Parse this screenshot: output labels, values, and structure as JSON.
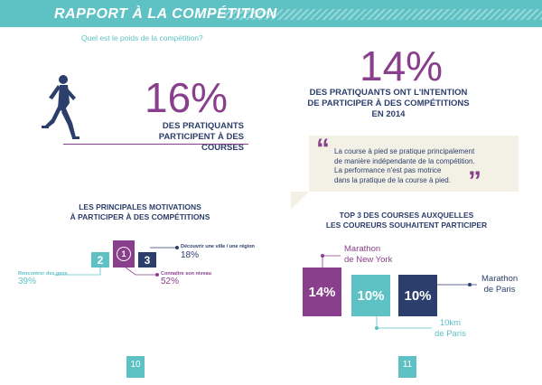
{
  "header": {
    "title": "RAPPORT À LA COMPÉTITION",
    "subtitle": "Quel est le poids de la compétition?"
  },
  "left_page": {
    "big_percent": "16%",
    "stat_lines": [
      "DES PRATIQUANTS",
      "PARTICIPENT À DES",
      "COURSES"
    ],
    "motivations_heading": [
      "LES PRINCIPALES MOTIVATIONS",
      "À PARTICIPER À DES COMPÉTITIONS"
    ],
    "motivations": [
      {
        "rank": "1",
        "label": "Connaître son niveau",
        "percent": "52%"
      },
      {
        "rank": "2",
        "label": "Rencontrer des gens",
        "percent": "39%"
      },
      {
        "rank": "3",
        "label": "Découvrir une ville / une région",
        "percent": "18%"
      }
    ],
    "page_number": "10"
  },
  "right_page": {
    "big_percent": "14%",
    "stat_lines": [
      "DES PRATIQUANTS ONT L'INTENTION",
      "DE PARTICIPER À DES COMPÉTITIONS",
      "EN 2014"
    ],
    "quote_lines": [
      "La course à pied se pratique principalement",
      "de manière indépendante de la compétition.",
      "La performance n'est pas motrice",
      "dans la pratique de la course à pied."
    ],
    "top3_heading": [
      "TOP 3 DES COURSES AUXQUELLES",
      "LES COUREURS SOUHAITENT PARTICIPER"
    ],
    "top3": [
      {
        "percent": "14%",
        "race_lines": [
          "Marathon",
          "de New York"
        ]
      },
      {
        "percent": "10%",
        "race_lines": [
          "10km",
          "de Paris"
        ]
      },
      {
        "percent": "10%",
        "race_lines": [
          "Marathon",
          "de Paris"
        ]
      }
    ],
    "page_number": "11"
  },
  "colors": {
    "teal": "#5ec2c5",
    "purple": "#8a3f8d",
    "navy": "#2c3e6b",
    "quote_bg": "#f3f1e6"
  },
  "icons": {
    "runner": "runner-silhouette-icon"
  }
}
